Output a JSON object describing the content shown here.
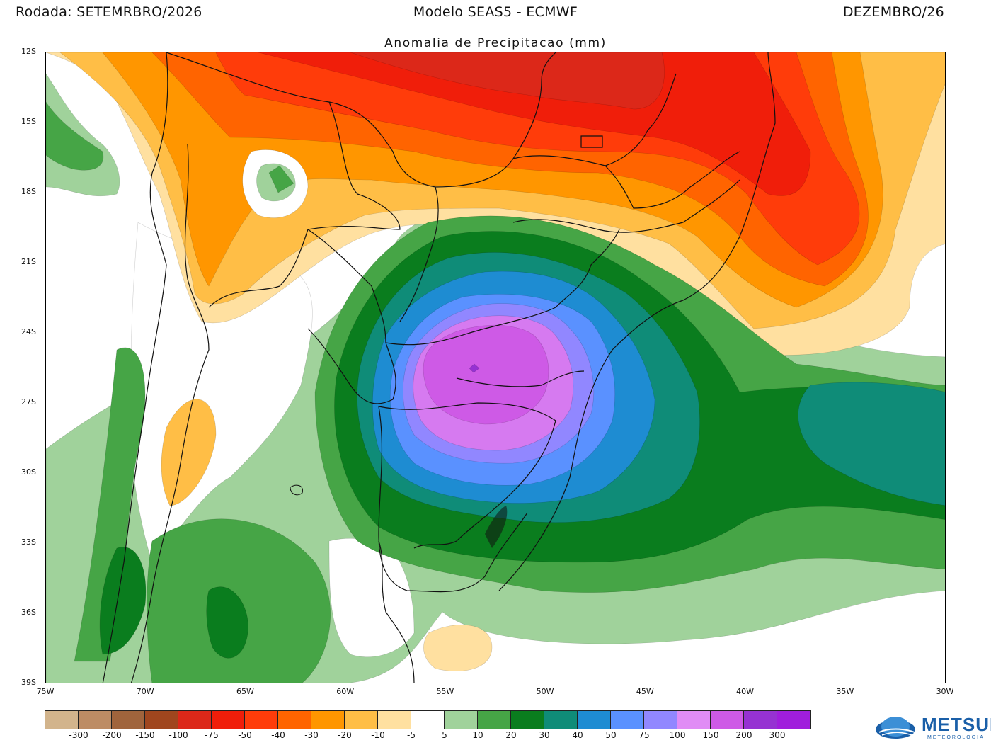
{
  "header": {
    "left": "Rodada: SETEMRBRO/2026",
    "center": "Modelo SEAS5 - ECMWF",
    "right": "DEZEMBRO/26",
    "subtitle": "Anomalia de Precipitacao (mm)"
  },
  "axes": {
    "lat_labels": [
      "12S",
      "15S",
      "18S",
      "21S",
      "24S",
      "27S",
      "30S",
      "33S",
      "36S",
      "39S"
    ],
    "lon_labels": [
      "75W",
      "70W",
      "65W",
      "60W",
      "55W",
      "50W",
      "45W",
      "40W",
      "35W",
      "30W"
    ]
  },
  "colors": {
    "a300": "#d2b48c",
    "a200": "#bd8c64",
    "a150": "#a0643c",
    "a100": "#a0461e",
    "a75": "#dc2819",
    "a50": "#f01e0a",
    "a40": "#ff3c0a",
    "a30": "#ff6400",
    "a20": "#ff9600",
    "a10": "#ffbe46",
    "a5n": "#ffe0a0",
    "neutral": "#ffffff",
    "p5": "#a0d29b",
    "p10": "#46a546",
    "p20": "#0a7d1e",
    "p30": "#0f8c78",
    "p40": "#1e8cd2",
    "p50": "#5a91ff",
    "p75": "#9187ff",
    "p100": "#d67af0",
    "p150": "#ce5ae6",
    "p200": "#9632d2",
    "p300": "#a01edc"
  },
  "legend": {
    "swatch_colors": [
      "#d2b48c",
      "#bd8c64",
      "#a0643c",
      "#a0461e",
      "#dc2819",
      "#f01e0a",
      "#ff3c0a",
      "#ff6400",
      "#ff9600",
      "#ffbe46",
      "#ffe0a0",
      "#ffffff",
      "#a0d29b",
      "#46a546",
      "#0a7d1e",
      "#0f8c78",
      "#1e8cd2",
      "#5a91ff",
      "#9187ff",
      "#e08cf5",
      "#ce5ae6",
      "#9632d2",
      "#a01edc"
    ],
    "ticks": [
      "-300",
      "-200",
      "-150",
      "-100",
      "-75",
      "-50",
      "-40",
      "-30",
      "-20",
      "-10",
      "-5",
      "5",
      "10",
      "20",
      "30",
      "40",
      "50",
      "75",
      "100",
      "150",
      "200",
      "300"
    ]
  },
  "logo": {
    "name": "METSUL",
    "tagline": "METEOROLOGIA"
  }
}
